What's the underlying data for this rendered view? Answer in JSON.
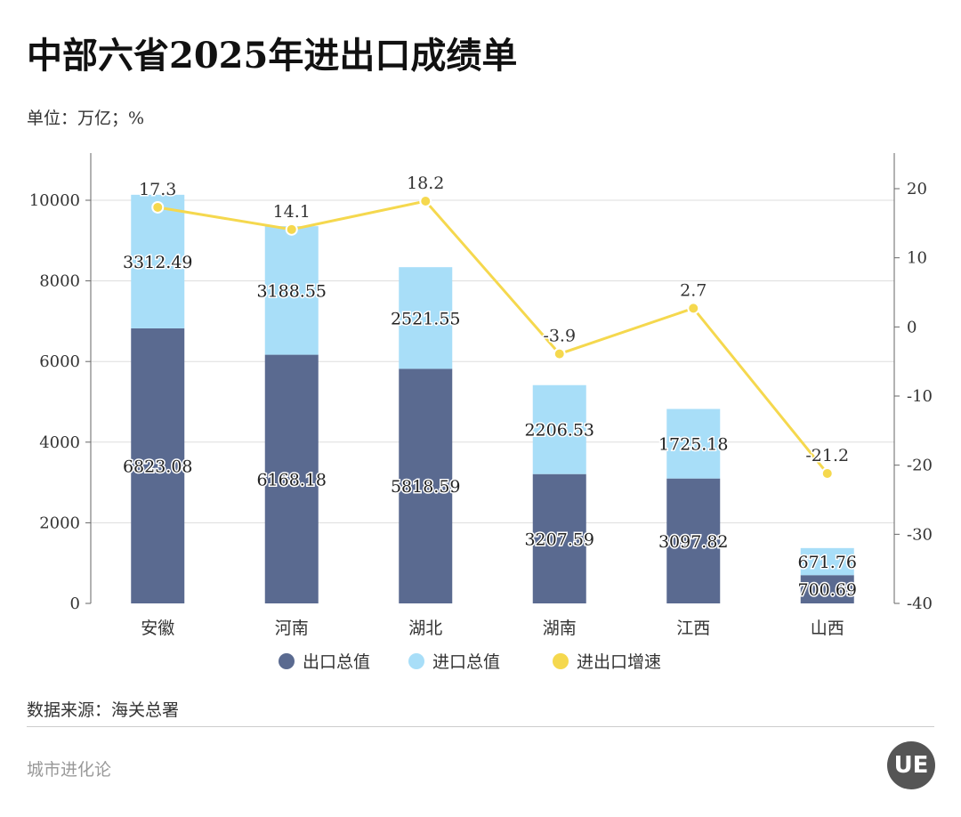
{
  "title": "中部六省2025年进出口成绩单",
  "unit": "单位：万亿；%",
  "source": "数据来源：海关总署",
  "footer": "城市进化论",
  "logo_text": "UE",
  "chart_data": {
    "type": "bar",
    "stacked": true,
    "categories": [
      "安徽",
      "河南",
      "湖北",
      "湖南",
      "江西",
      "山西"
    ],
    "series": [
      {
        "name": "出口总值",
        "type": "bar",
        "axis": "left",
        "color": "#5a6a90",
        "values": [
          6823.08,
          6168.18,
          5818.59,
          3207.59,
          3097.82,
          700.69
        ]
      },
      {
        "name": "进口总值",
        "type": "bar",
        "axis": "left",
        "color": "#a8def8",
        "values": [
          3312.49,
          3188.55,
          2521.55,
          2206.53,
          1725.18,
          671.76
        ]
      },
      {
        "name": "进出口增速",
        "type": "line",
        "axis": "right",
        "color": "#f5d84e",
        "values": [
          17.3,
          14.1,
          18.2,
          -3.9,
          2.7,
          -21.2
        ]
      }
    ],
    "left_axis": {
      "ticks": [
        0,
        2000,
        4000,
        6000,
        8000,
        10000
      ]
    },
    "right_axis": {
      "ticks": [
        20,
        10,
        0,
        -10,
        -20,
        -30,
        -40
      ]
    },
    "grid": true,
    "legend": "bottom"
  }
}
